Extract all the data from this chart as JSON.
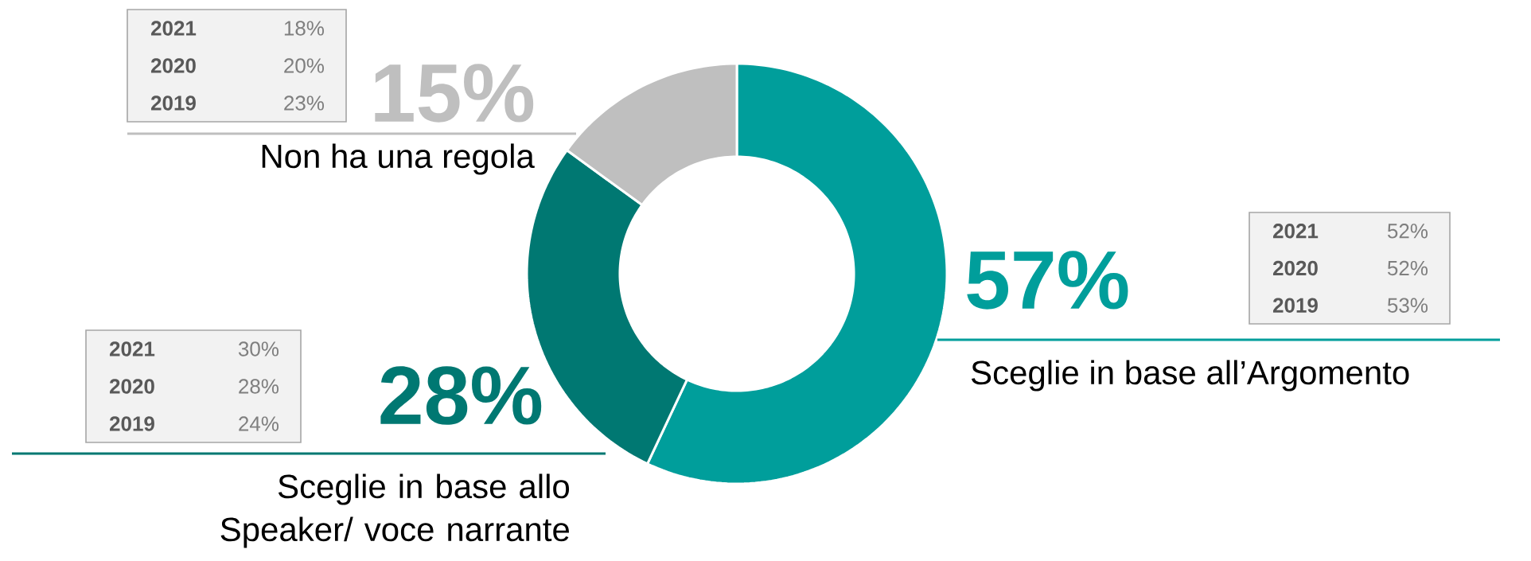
{
  "chart_data": {
    "type": "donut",
    "categories": [
      "Sceglie in base all’Argomento",
      "Sceglie in base allo Speaker/ voce narrante",
      "Non ha una regola"
    ],
    "values": [
      57,
      28,
      15
    ],
    "colors": [
      "#009e9b",
      "#007872",
      "#bfbfbf"
    ],
    "value_labels": [
      "57%",
      "28%",
      "15%"
    ],
    "annotations": [
      "2021",
      "52%",
      "2020",
      "52%",
      "2019",
      "53%",
      "2021",
      "30%",
      "2020",
      "28%",
      "2019",
      "24%",
      "2021",
      "18%",
      "2020",
      "20%",
      "2019",
      "23%"
    ]
  }
}
